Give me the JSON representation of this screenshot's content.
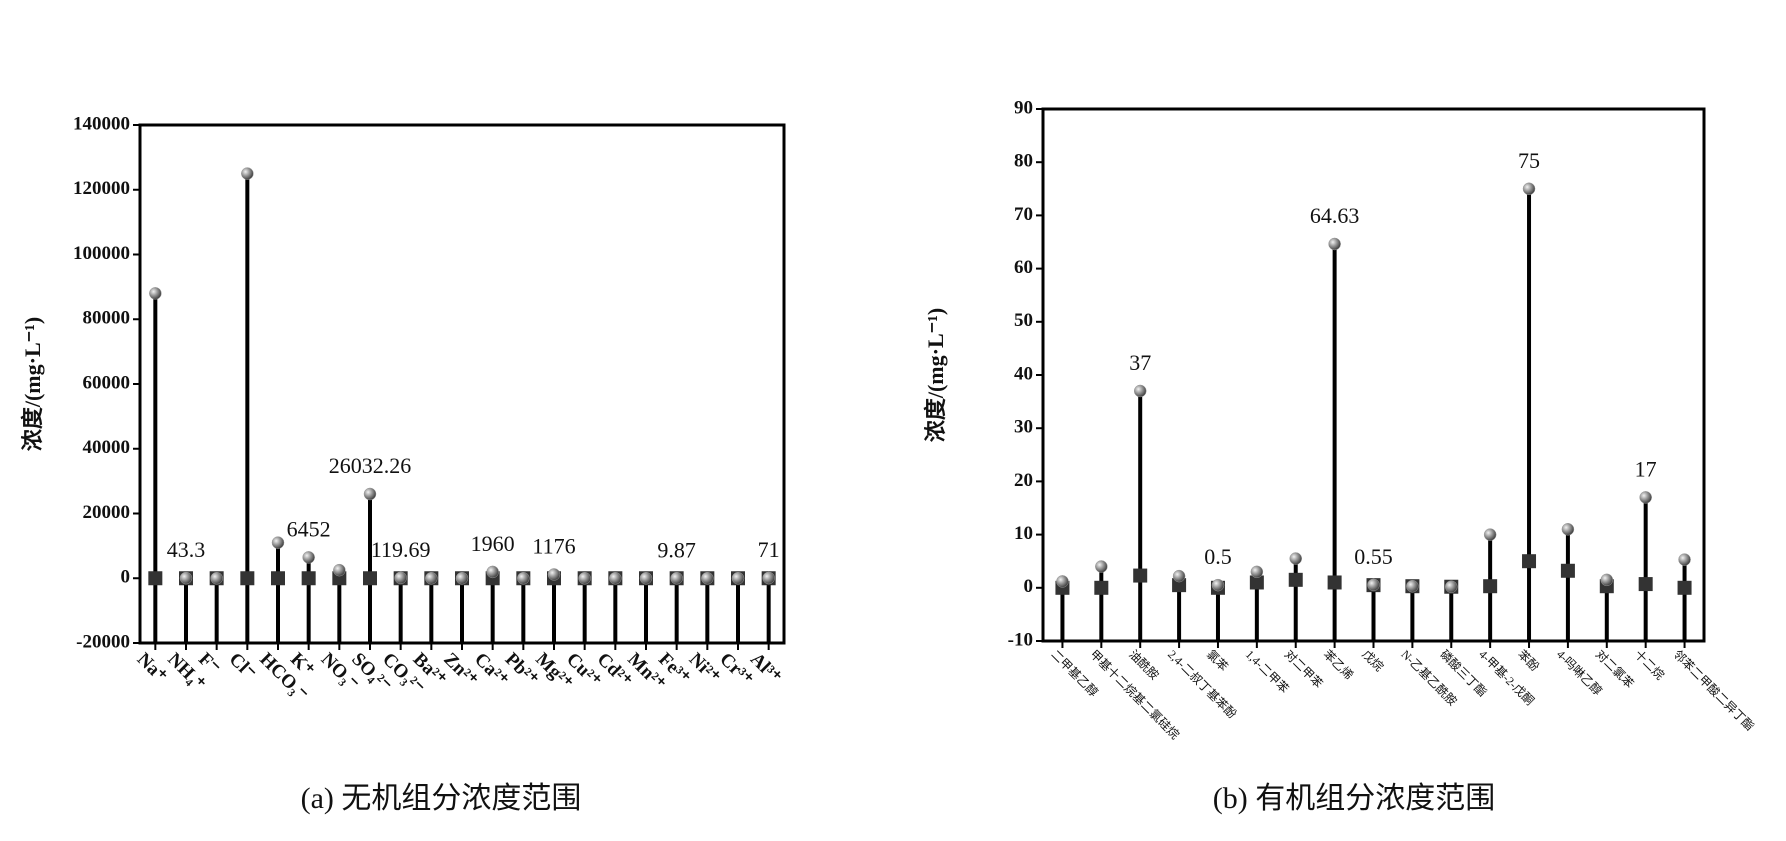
{
  "chart_data": [
    {
      "type": "lollipop",
      "caption": "(a) 无机组分浓度范围",
      "ylabel": "浓度/(mg·L⁻¹)",
      "categories": [
        "Na⁺",
        "NH₄⁺",
        "F⁻",
        "Cl⁻",
        "HCO₃⁻",
        "K⁺",
        "NO₃⁻",
        "SO₄²⁻",
        "CO₃²⁻",
        "Ba²⁺",
        "Zn²⁺",
        "Ca²⁺",
        "Pb²⁺",
        "Mg²⁺",
        "Cu²⁺",
        "Cd²⁺",
        "Mn²⁺",
        "Fe³⁺",
        "Ni²⁺",
        "Cr³⁺",
        "Al³⁺"
      ],
      "series": [
        {
          "color": "#999999",
          "values": [
            88000,
            43.3,
            0,
            125000,
            11000,
            6452,
            2500,
            26032.26,
            119.69,
            0,
            0,
            1960,
            0,
            1176,
            0,
            0,
            0,
            9.87,
            0,
            0,
            71
          ],
          "value_labels": [
            null,
            "43.3",
            null,
            null,
            null,
            "6452",
            null,
            "26032.26",
            "119.69",
            null,
            null,
            "1960",
            null,
            "1176",
            null,
            null,
            null,
            "9.87",
            null,
            null,
            "71"
          ]
        },
        {
          "color": "#333333",
          "values": [
            0,
            0,
            0,
            0,
            0,
            0,
            0,
            0,
            0,
            0,
            0,
            0,
            0,
            0,
            0,
            0,
            0,
            0,
            0,
            0,
            0
          ]
        }
      ],
      "ylim": [
        -20000,
        140000
      ],
      "yticks": [
        -20000,
        0,
        20000,
        40000,
        60000,
        80000,
        100000,
        120000,
        140000
      ]
    },
    {
      "type": "lollipop",
      "caption": "(b) 有机组分浓度范围",
      "ylabel": "浓度/(mg·L⁻¹)",
      "categories": [
        "二甲基乙醇",
        "甲基十二烷基二氯硅烷",
        "油酰胺",
        "2,4-二叔丁基苯酚",
        "氯苯",
        "1,4-二甲苯",
        "对二甲苯",
        "苯乙烯",
        "戊烷",
        "N-乙基乙酰胺",
        "磷酸三丁酯",
        "4-甲基-2-戊酮",
        "苯酚",
        "4-吗啉乙醇",
        "对二氯苯",
        "十二烷",
        "邻苯二甲酸二异丁酯"
      ],
      "series": [
        {
          "color": "#999999",
          "values": [
            1.2,
            4,
            37,
            2.2,
            0.5,
            3,
            5.5,
            64.63,
            0.55,
            0.3,
            0.2,
            10,
            75,
            11,
            1.5,
            17,
            5.3
          ],
          "value_labels": [
            null,
            null,
            "37",
            null,
            "0.5",
            null,
            null,
            "64.63",
            "0.55",
            null,
            null,
            null,
            "75",
            null,
            null,
            "17",
            null
          ]
        },
        {
          "color": "#333333",
          "values": [
            0,
            0,
            2.3,
            0.5,
            0,
            1,
            1.5,
            1,
            0.5,
            0.3,
            0.2,
            0.3,
            5,
            3.2,
            0.3,
            0.7,
            0
          ]
        }
      ],
      "ylim": [
        -10,
        90
      ],
      "yticks": [
        -10,
        0,
        10,
        20,
        30,
        40,
        50,
        60,
        70,
        80,
        90
      ]
    }
  ]
}
